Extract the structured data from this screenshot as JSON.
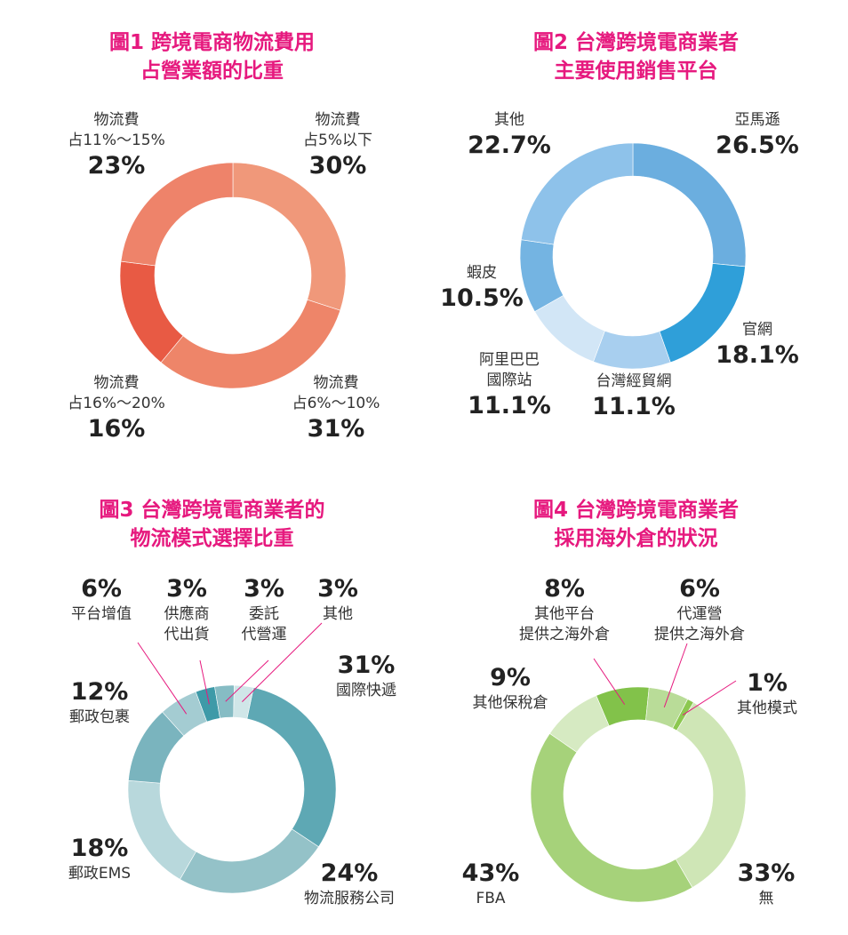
{
  "chart_data": [
    {
      "type": "pie",
      "title_lines": [
        "圖1 跨境電商物流費用",
        "占營業額的比重"
      ],
      "slices": [
        {
          "label_lines": [
            "物流費",
            "占5%以下"
          ],
          "value": 30,
          "value_label": "30%",
          "color": "#f0987a"
        },
        {
          "label_lines": [
            "物流費",
            "占6%～10%"
          ],
          "value": 31,
          "value_label": "31%",
          "color": "#ee8569"
        },
        {
          "label_lines": [
            "物流費",
            "占16%～20%"
          ],
          "value": 16,
          "value_label": "16%",
          "color": "#e85a44"
        },
        {
          "label_lines": [
            "物流費",
            "占11%～15%"
          ],
          "value": 23,
          "value_label": "23%",
          "color": "#ee836a"
        }
      ]
    },
    {
      "type": "pie",
      "title_lines": [
        "圖2 台灣跨境電商業者",
        "主要使用銷售平台"
      ],
      "slices": [
        {
          "label_lines": [
            "亞馬遜"
          ],
          "value": 26.5,
          "value_label": "26.5%",
          "color": "#6baedf"
        },
        {
          "label_lines": [
            "官網"
          ],
          "value": 18.1,
          "value_label": "18.1%",
          "color": "#2f9fd9"
        },
        {
          "label_lines": [
            "台灣經貿網"
          ],
          "value": 11.1,
          "value_label": "11.1%",
          "color": "#a8cfef"
        },
        {
          "label_lines": [
            "阿里巴巴",
            "國際站"
          ],
          "value": 11.1,
          "value_label": "11.1%",
          "color": "#d2e6f6"
        },
        {
          "label_lines": [
            "蝦皮"
          ],
          "value": 10.5,
          "value_label": "10.5%",
          "color": "#74b4e2"
        },
        {
          "label_lines": [
            "其他"
          ],
          "value": 22.7,
          "value_label": "22.7%",
          "color": "#8ec2ea"
        }
      ]
    },
    {
      "type": "pie",
      "title_lines": [
        "圖3 台灣跨境電商業者的",
        "物流模式選擇比重"
      ],
      "slices": [
        {
          "label_lines": [
            "國際快遞"
          ],
          "value": 31,
          "value_label": "31%",
          "color": "#5ea8b4"
        },
        {
          "label_lines": [
            "物流服務公司"
          ],
          "value": 24,
          "value_label": "24%",
          "color": "#94c2c8"
        },
        {
          "label_lines": [
            "郵政EMS"
          ],
          "value": 18,
          "value_label": "18%",
          "color": "#b8d8dc"
        },
        {
          "label_lines": [
            "郵政包裹"
          ],
          "value": 12,
          "value_label": "12%",
          "color": "#7ab4be"
        },
        {
          "label_lines": [
            "平台增值"
          ],
          "value": 6,
          "value_label": "6%",
          "color": "#a4ccd2"
        },
        {
          "label_lines": [
            "供應商",
            "代出貨"
          ],
          "value": 3,
          "value_label": "3%",
          "color": "#3e9aa8"
        },
        {
          "label_lines": [
            "委託",
            "代營運"
          ],
          "value": 3,
          "value_label": "3%",
          "color": "#86bcc4"
        },
        {
          "label_lines": [
            "其他"
          ],
          "value": 3,
          "value_label": "3%",
          "color": "#d0e6e8"
        }
      ]
    },
    {
      "type": "pie",
      "title_lines": [
        "圖4 台灣跨境電商業者",
        "採用海外倉的狀況"
      ],
      "slices": [
        {
          "label_lines": [
            "其他平台",
            "提供之海外倉"
          ],
          "value": 8,
          "value_label": "8%",
          "color": "#82c24a"
        },
        {
          "label_lines": [
            "代運營",
            "提供之海外倉"
          ],
          "value": 6,
          "value_label": "6%",
          "color": "#b9dc98"
        },
        {
          "label_lines": [
            "其他模式"
          ],
          "value": 1,
          "value_label": "1%",
          "color": "#8cc850"
        },
        {
          "label_lines": [
            "無"
          ],
          "value": 33,
          "value_label": "33%",
          "color": "#cfe6b6"
        },
        {
          "label_lines": [
            "FBA"
          ],
          "value": 43,
          "value_label": "43%",
          "color": "#a6d27a"
        },
        {
          "label_lines": [
            "其他保稅倉"
          ],
          "value": 9,
          "value_label": "9%",
          "color": "#d6eac2"
        }
      ]
    }
  ]
}
